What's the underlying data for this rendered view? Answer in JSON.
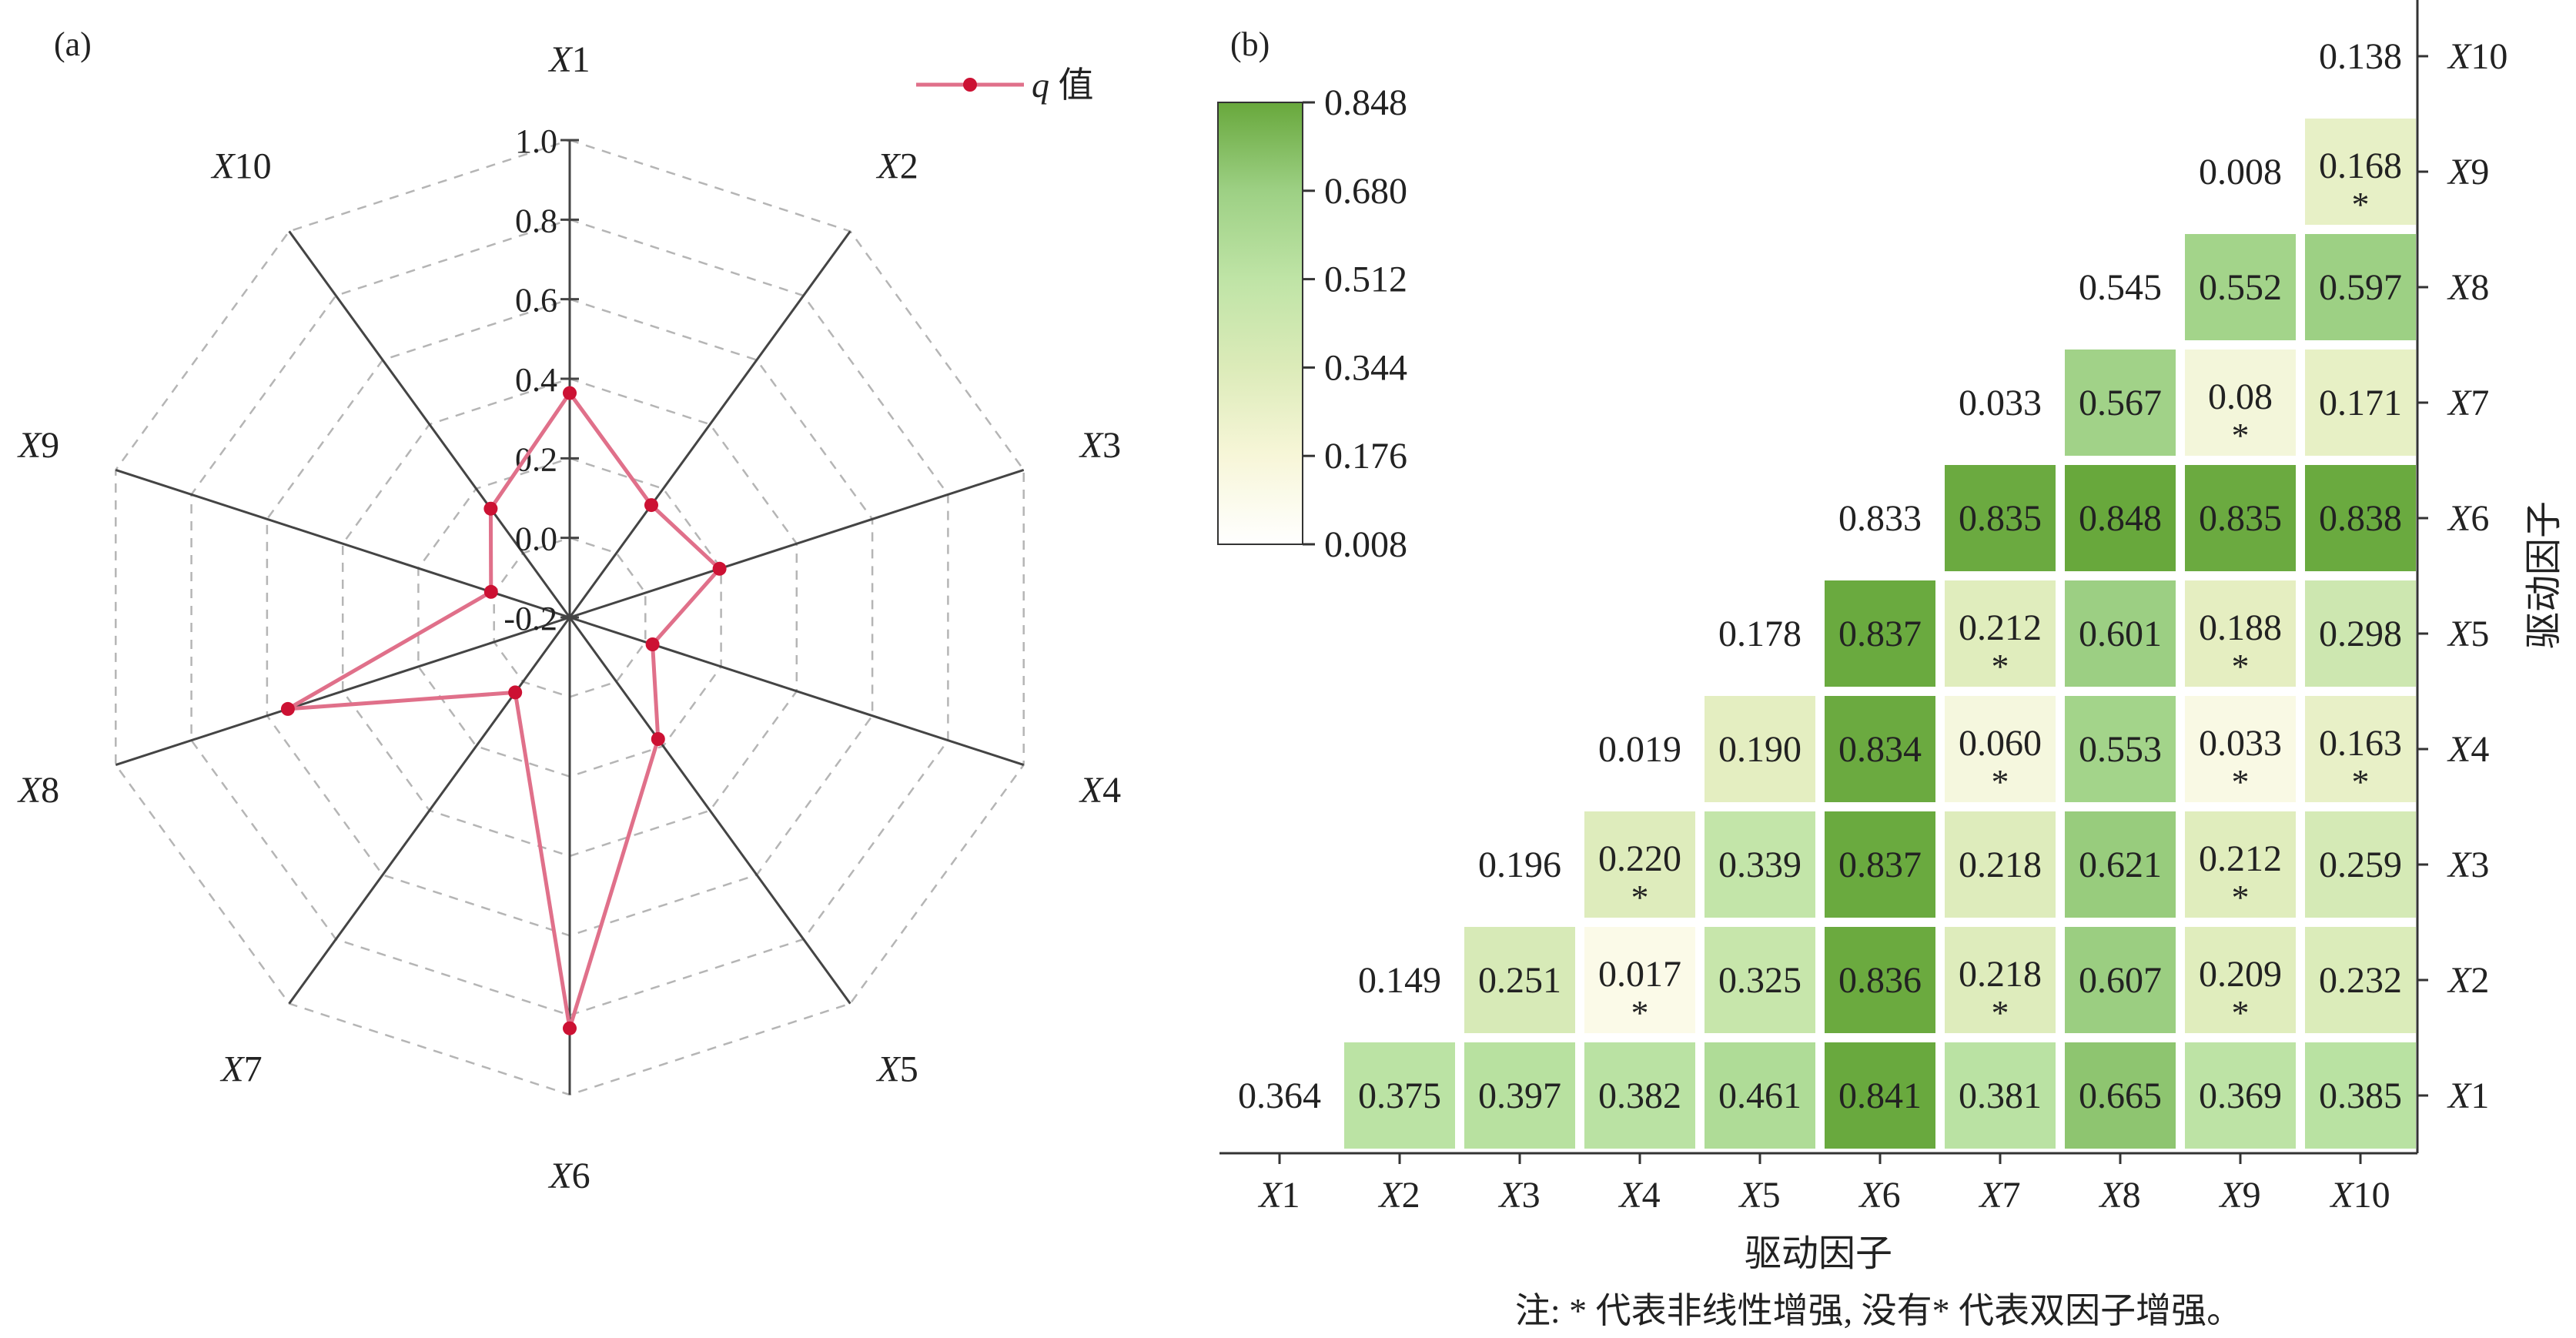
{
  "figure": {
    "panel_a_label": "(a)",
    "panel_b_label": "(b)",
    "note": "注: * 代表非线性增强, 没有* 代表双因子增强。"
  },
  "colors": {
    "radar_line": "#e0708a",
    "radar_point": "#cc1133",
    "radar_axis": "#444444",
    "radar_grid": "#b5b5b5",
    "heat_low": "#fcfbea",
    "heat_mid_low": "#e4eec0",
    "heat_mid": "#b9e2a2",
    "heat_high": "#9dd084",
    "heat_top": "#68a83c"
  },
  "chart_data": [
    {
      "type": "radar",
      "panel": "(a)",
      "axes": [
        "X1",
        "X2",
        "X3",
        "X4",
        "X5",
        "X6",
        "X7",
        "X8",
        "X9",
        "X10"
      ],
      "rlim": [
        -0.2,
        1.0
      ],
      "r_ticks": [
        "1.0",
        "0.8",
        "0.6",
        "0.4",
        "0.2",
        "0.0",
        "-0.2"
      ],
      "series": [
        {
          "name": "q 值",
          "values": [
            0.364,
            0.149,
            0.196,
            0.019,
            0.178,
            0.833,
            0.033,
            0.545,
            0.008,
            0.138
          ]
        }
      ],
      "legend_position": "top-right",
      "grid": true
    },
    {
      "type": "heatmap",
      "panel": "(b)",
      "factors": [
        "X1",
        "X2",
        "X3",
        "X4",
        "X5",
        "X6",
        "X7",
        "X8",
        "X9",
        "X10"
      ],
      "xlabel": "驱动因子",
      "ylabel": "驱动因子",
      "colorbar": {
        "min": 0.008,
        "max": 0.848,
        "ticks": [
          "0.848",
          "0.680",
          "0.512",
          "0.344",
          "0.176",
          "0.008"
        ]
      },
      "rows": [
        {
          "factor": "X1",
          "cells": [
            [
              "0.364",
              ""
            ],
            [
              "0.375",
              ""
            ],
            [
              "0.397",
              ""
            ],
            [
              "0.382",
              ""
            ],
            [
              "0.461",
              ""
            ],
            [
              "0.841",
              ""
            ],
            [
              "0.381",
              ""
            ],
            [
              "0.665",
              ""
            ],
            [
              "0.369",
              ""
            ],
            [
              "0.385",
              ""
            ]
          ]
        },
        {
          "factor": "X2",
          "cells": [
            null,
            [
              "0.149",
              ""
            ],
            [
              "0.251",
              ""
            ],
            [
              "0.017",
              "*"
            ],
            [
              "0.325",
              ""
            ],
            [
              "0.836",
              ""
            ],
            [
              "0.218",
              "*"
            ],
            [
              "0.607",
              ""
            ],
            [
              "0.209",
              "*"
            ],
            [
              "0.232",
              ""
            ]
          ]
        },
        {
          "factor": "X3",
          "cells": [
            null,
            null,
            [
              "0.196",
              ""
            ],
            [
              "0.220",
              "*"
            ],
            [
              "0.339",
              ""
            ],
            [
              "0.837",
              ""
            ],
            [
              "0.218",
              ""
            ],
            [
              "0.621",
              ""
            ],
            [
              "0.212",
              "*"
            ],
            [
              "0.259",
              ""
            ]
          ]
        },
        {
          "factor": "X4",
          "cells": [
            null,
            null,
            null,
            [
              "0.019",
              ""
            ],
            [
              "0.190",
              ""
            ],
            [
              "0.834",
              ""
            ],
            [
              "0.060",
              "*"
            ],
            [
              "0.553",
              ""
            ],
            [
              "0.033",
              "*"
            ],
            [
              "0.163",
              "*"
            ]
          ]
        },
        {
          "factor": "X5",
          "cells": [
            null,
            null,
            null,
            null,
            [
              "0.178",
              ""
            ],
            [
              "0.837",
              ""
            ],
            [
              "0.212",
              "*"
            ],
            [
              "0.601",
              ""
            ],
            [
              "0.188",
              "*"
            ],
            [
              "0.298",
              ""
            ]
          ]
        },
        {
          "factor": "X6",
          "cells": [
            null,
            null,
            null,
            null,
            null,
            [
              "0.833",
              ""
            ],
            [
              "0.835",
              ""
            ],
            [
              "0.848",
              ""
            ],
            [
              "0.835",
              ""
            ],
            [
              "0.838",
              ""
            ]
          ]
        },
        {
          "factor": "X7",
          "cells": [
            null,
            null,
            null,
            null,
            null,
            null,
            [
              "0.033",
              ""
            ],
            [
              "0.567",
              ""
            ],
            [
              "0.08",
              "*"
            ],
            [
              "0.171",
              ""
            ]
          ]
        },
        {
          "factor": "X8",
          "cells": [
            null,
            null,
            null,
            null,
            null,
            null,
            null,
            [
              "0.545",
              ""
            ],
            [
              "0.552",
              ""
            ],
            [
              "0.597",
              ""
            ]
          ]
        },
        {
          "factor": "X9",
          "cells": [
            null,
            null,
            null,
            null,
            null,
            null,
            null,
            null,
            [
              "0.008",
              ""
            ],
            [
              "0.168",
              "*"
            ]
          ]
        },
        {
          "factor": "X10",
          "cells": [
            null,
            null,
            null,
            null,
            null,
            null,
            null,
            null,
            null,
            [
              "0.138",
              ""
            ]
          ]
        }
      ]
    }
  ]
}
